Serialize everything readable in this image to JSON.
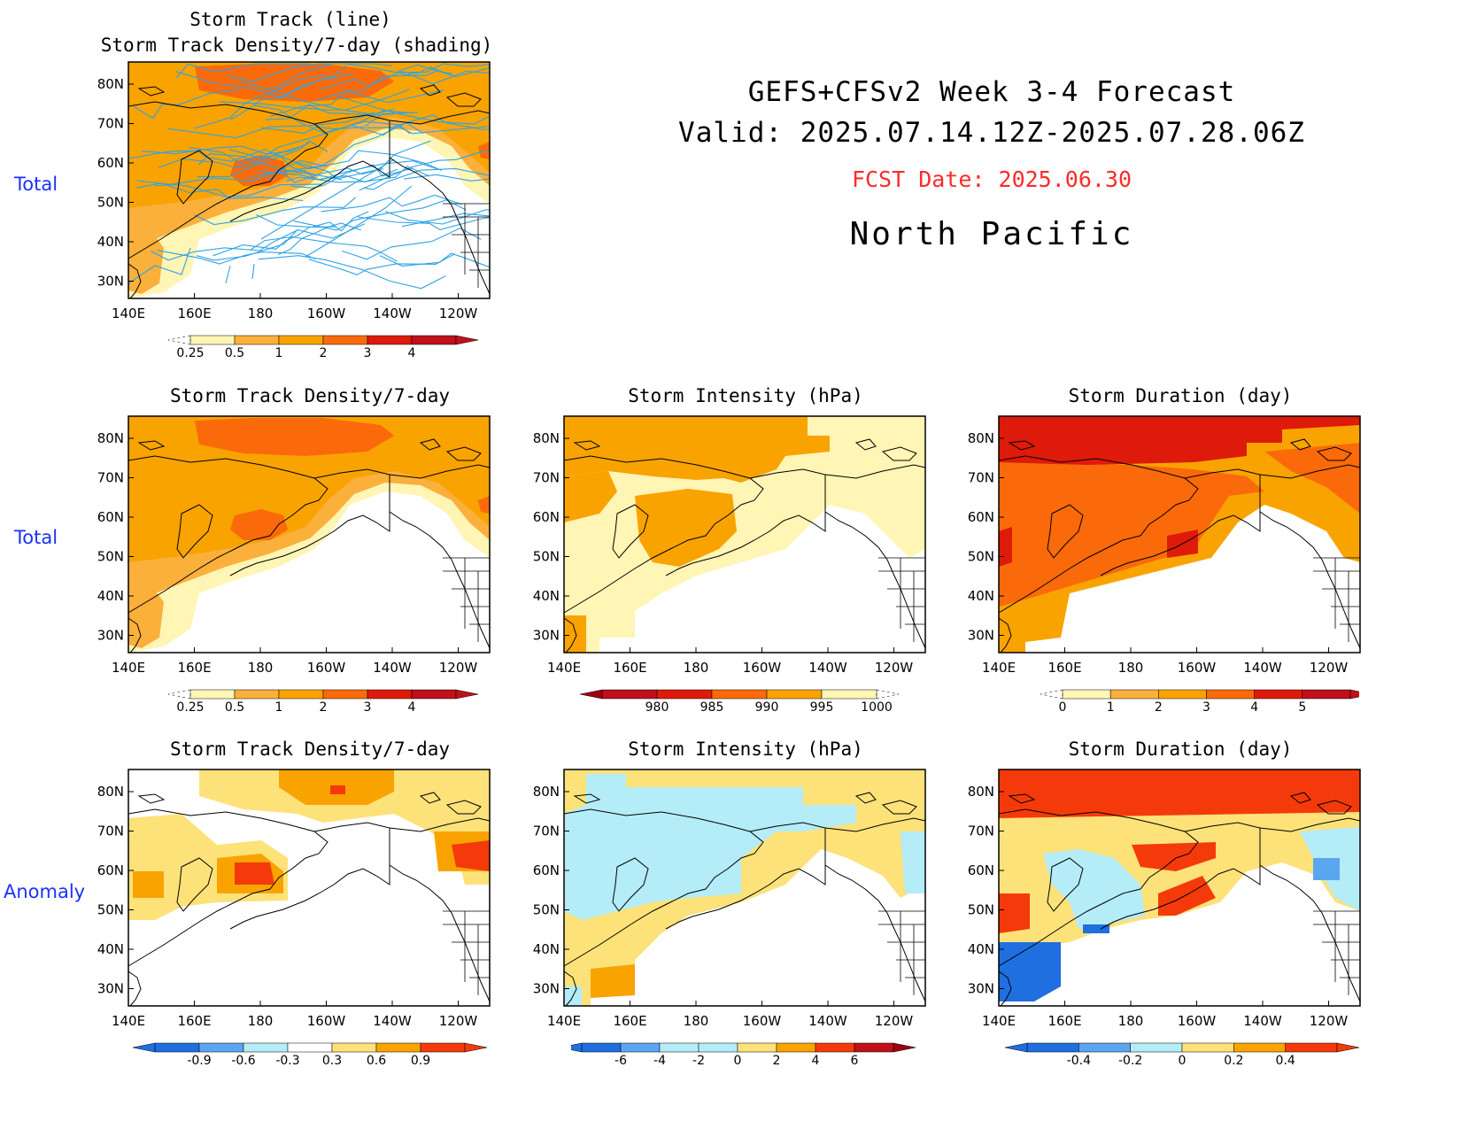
{
  "header": {
    "line1": "GEFS+CFSv2 Week 3-4 Forecast",
    "line2": "Valid: 2025.07.14.12Z-2025.07.28.06Z",
    "fcst": "FCST Date: 2025.06.30",
    "region": "North Pacific"
  },
  "row_labels": [
    "Total",
    "Total",
    "Anomaly"
  ],
  "axes": {
    "lat_ticks": [
      "80N",
      "70N",
      "60N",
      "50N",
      "40N",
      "30N"
    ],
    "lon_ticks": [
      "140E",
      "160E",
      "180",
      "160W",
      "140W",
      "120W"
    ]
  },
  "palette": {
    "light_yellow": "#fff5b4",
    "yellow": "#fde27a",
    "gold": "#fbb03b",
    "orange": "#f9a300",
    "dark_orange": "#fa6a0a",
    "red_orange": "#f43a0b",
    "red": "#de1a0a",
    "light_blue": "#b4ecf8",
    "mid_blue": "#5ba6f0",
    "blue": "#1f6fe0",
    "track_blue": "#2ea3e6"
  },
  "panels": [
    {
      "id": "track",
      "title": "Storm Track (line)\nStorm Track Density/7-day (shading)",
      "title_lines": [
        "Storm Track (line)",
        "Storm Track Density/7-day (shading)"
      ],
      "colorbar": {
        "labels": [
          "0.25",
          "0.5",
          "1",
          "2",
          "3",
          "4"
        ]
      }
    },
    {
      "id": "density_total",
      "title": "Storm Track Density/7-day",
      "colorbar": {
        "labels": [
          "0.25",
          "0.5",
          "1",
          "2",
          "3",
          "4"
        ]
      }
    },
    {
      "id": "intensity_total",
      "title": "Storm Intensity (hPa)",
      "colorbar": {
        "labels": [
          "980",
          "985",
          "990",
          "995",
          "1000"
        ]
      }
    },
    {
      "id": "duration_total",
      "title": "Storm Duration (day)",
      "colorbar": {
        "labels": [
          "0",
          "1",
          "2",
          "3",
          "4",
          "5"
        ]
      }
    },
    {
      "id": "density_anom",
      "title": "Storm Track Density/7-day",
      "colorbar": {
        "labels": [
          "-0.9",
          "-0.6",
          "-0.3",
          "0.3",
          "0.6",
          "0.9"
        ]
      }
    },
    {
      "id": "intensity_anom",
      "title": "Storm Intensity (hPa)",
      "colorbar": {
        "labels": [
          "-6",
          "-4",
          "-2",
          "0",
          "2",
          "4",
          "6"
        ]
      }
    },
    {
      "id": "duration_anom",
      "title": "Storm Duration (day)",
      "colorbar": {
        "labels": [
          "-0.4",
          "-0.2",
          "0",
          "0.2",
          "0.4"
        ]
      }
    }
  ]
}
